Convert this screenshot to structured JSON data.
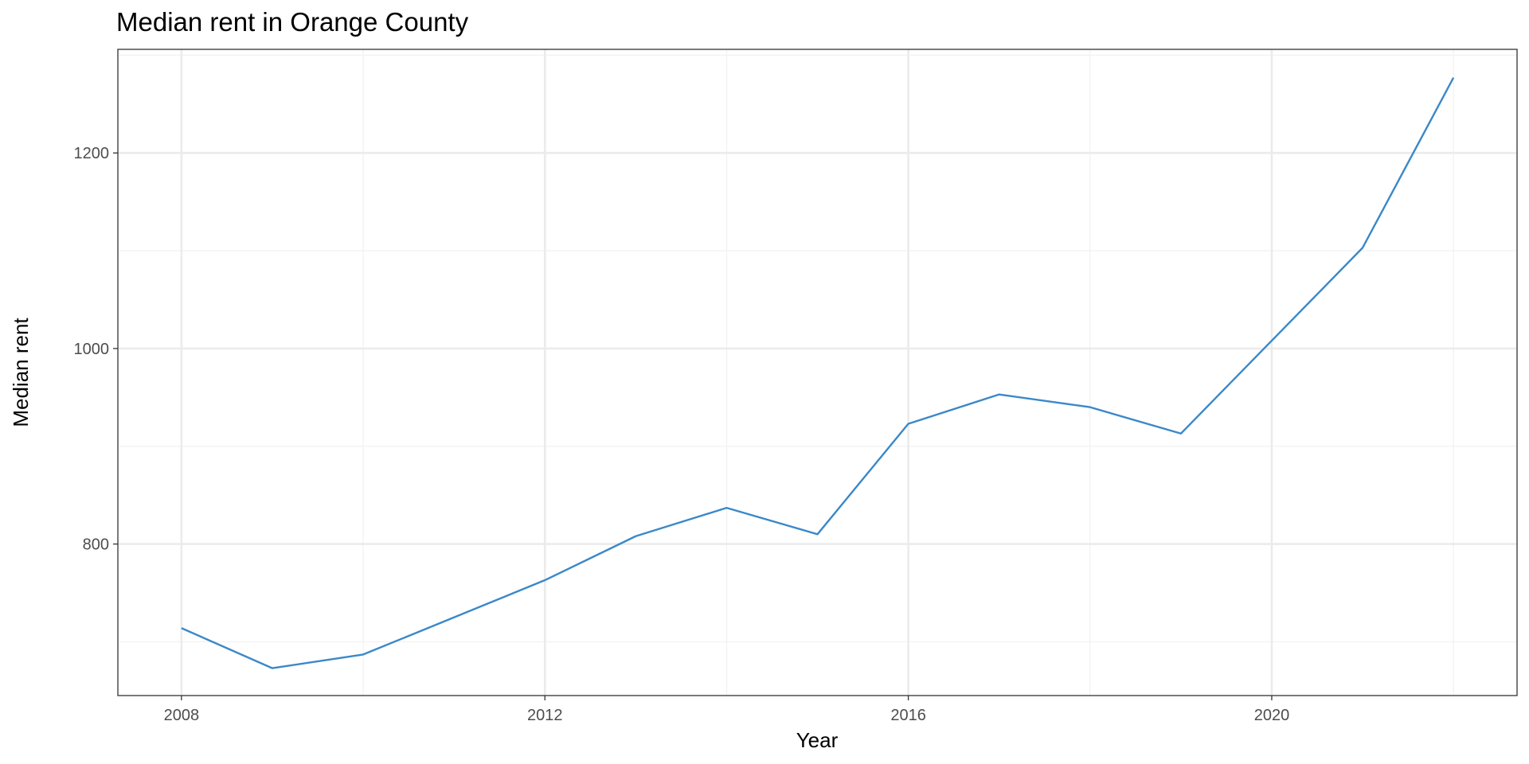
{
  "chart_data": {
    "type": "line",
    "title": "Median rent in Orange County",
    "xlabel": "Year",
    "ylabel": "Median rent",
    "x": [
      2008,
      2009,
      2010,
      2011,
      2012,
      2013,
      2014,
      2015,
      2016,
      2017,
      2018,
      2019,
      2020,
      2021,
      2022
    ],
    "series": [
      {
        "values": [
          714,
          673,
          687,
          725,
          763,
          808,
          837,
          810,
          923,
          953,
          940,
          913,
          1008,
          1103,
          1277
        ],
        "color": "#3a88c9"
      }
    ],
    "xlim": [
      2007.3,
      2022.7
    ],
    "ylim": [
      645,
      1306
    ],
    "x_ticks": [
      2008,
      2012,
      2016,
      2020
    ],
    "x_tick_labels": [
      "2008",
      "2012",
      "2016",
      "2020"
    ],
    "x_minor_ticks": [
      2010,
      2014,
      2018,
      2022
    ],
    "y_ticks": [
      800,
      1000,
      1200
    ],
    "y_tick_labels": [
      "800",
      "1000",
      "1200"
    ],
    "y_minor_ticks": [
      700,
      900,
      1100,
      1300
    ],
    "grid": true,
    "legend": "none",
    "colors": {
      "panel_border": "#333333",
      "grid_major": "#ebebeb",
      "grid_minor": "#f2f2f2",
      "tick_label": "#4d4d4d",
      "text": "#000000"
    }
  }
}
